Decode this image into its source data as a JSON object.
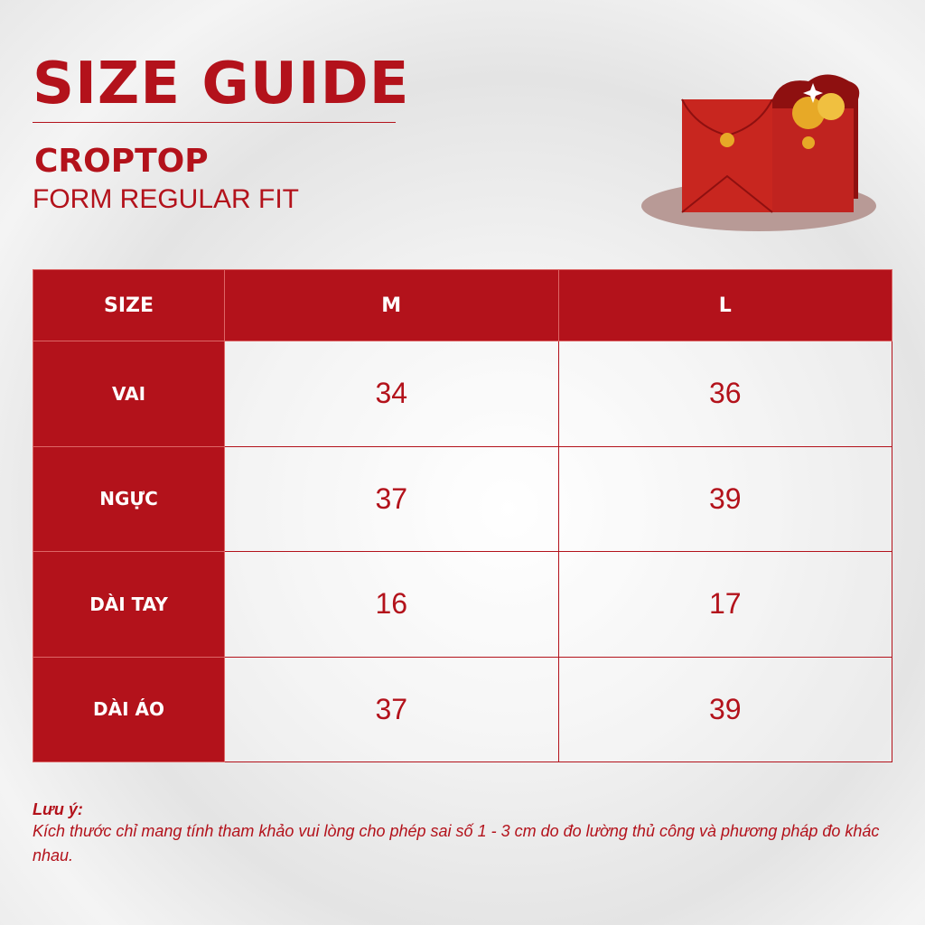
{
  "header": {
    "title": "SIZE GUIDE",
    "product": "CROPTOP",
    "fit": "FORM REGULAR FIT"
  },
  "colors": {
    "accent": "#b3121b"
  },
  "illustration": "red-envelopes-with-gold-coins",
  "table": {
    "columns": [
      "SIZE",
      "M",
      "L"
    ],
    "rows": [
      {
        "label": "VAI",
        "values": [
          "34",
          "36"
        ]
      },
      {
        "label": "NGỰC",
        "values": [
          "37",
          "39"
        ]
      },
      {
        "label": "DÀI TAY",
        "values": [
          "16",
          "17"
        ]
      },
      {
        "label": "DÀI ÁO",
        "values": [
          "37",
          "39"
        ]
      }
    ]
  },
  "note": {
    "label": "Lưu ý:",
    "text": "Kích thước chỉ mang tính tham khảo vui lòng cho phép sai số 1 - 3 cm do đo lường thủ công và phương pháp đo khác nhau."
  }
}
